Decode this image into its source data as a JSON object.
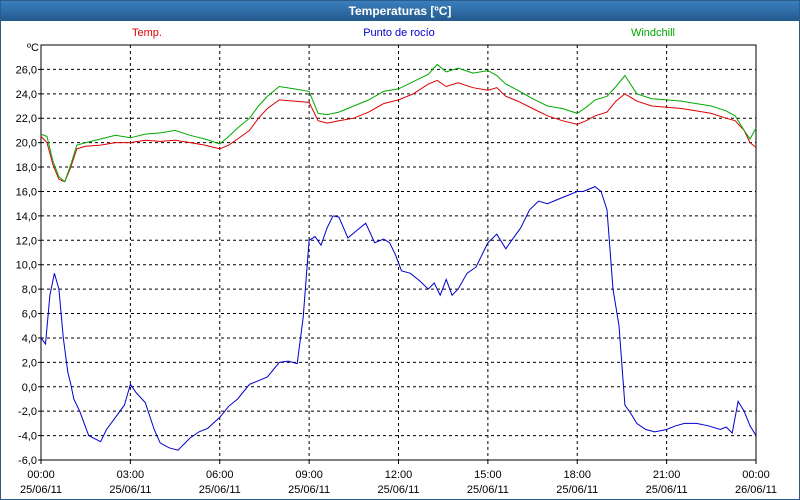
{
  "window": {
    "title": "Temperaturas [ºC]"
  },
  "chart_data": {
    "type": "line",
    "title": "Temperaturas [ºC]",
    "ylabel": "ºC",
    "ylim": [
      -6,
      28
    ],
    "yticks": [
      -6,
      -4,
      -2,
      0,
      2,
      4,
      6,
      8,
      10,
      12,
      14,
      16,
      18,
      20,
      22,
      24,
      26
    ],
    "ytick_labels": [
      "-6,0",
      "-4,0",
      "-2,0",
      "0,0",
      "2,0",
      "4,0",
      "6,0",
      "8,0",
      "10,0",
      "12,0",
      "14,0",
      "16,0",
      "18,0",
      "20,0",
      "22,0",
      "24,0",
      "26,0"
    ],
    "xlim": [
      0,
      24
    ],
    "xticks": [
      0,
      3,
      6,
      9,
      12,
      15,
      18,
      21,
      24
    ],
    "xtick_labels": [
      [
        "00:00",
        "25/06/11"
      ],
      [
        "03:00",
        "25/06/11"
      ],
      [
        "06:00",
        "25/06/11"
      ],
      [
        "09:00",
        "25/06/11"
      ],
      [
        "12:00",
        "25/06/11"
      ],
      [
        "15:00",
        "25/06/11"
      ],
      [
        "18:00",
        "25/06/11"
      ],
      [
        "21:00",
        "25/06/11"
      ],
      [
        "00:00",
        "26/06/11"
      ]
    ],
    "grid": true,
    "legend_position": "top",
    "series": [
      {
        "name": "Temp.",
        "color": "#dd0000",
        "x": [
          0,
          0.2,
          0.4,
          0.6,
          0.8,
          1.0,
          1.2,
          1.5,
          2.0,
          2.5,
          3.0,
          3.5,
          4.0,
          4.5,
          5.0,
          5.5,
          6.0,
          6.3,
          6.6,
          7.0,
          7.3,
          7.6,
          8.0,
          8.5,
          9.0,
          9.3,
          9.6,
          10.0,
          10.5,
          11.0,
          11.5,
          12.0,
          12.5,
          13.0,
          13.3,
          13.6,
          14.0,
          14.5,
          15.0,
          15.3,
          15.6,
          16.0,
          16.5,
          17.0,
          17.5,
          18.0,
          18.3,
          18.6,
          19.0,
          19.3,
          19.6,
          20.0,
          20.5,
          21.0,
          21.5,
          22.0,
          22.5,
          23.0,
          23.3,
          23.6,
          23.8,
          24.0
        ],
        "y": [
          20.5,
          20.0,
          18.2,
          17.0,
          16.8,
          18.0,
          19.5,
          19.7,
          19.8,
          20.0,
          20.0,
          20.2,
          20.1,
          20.2,
          20.0,
          19.8,
          19.5,
          19.8,
          20.3,
          21.0,
          22.0,
          22.8,
          23.5,
          23.4,
          23.3,
          21.8,
          21.6,
          21.8,
          22.0,
          22.5,
          23.2,
          23.5,
          24.0,
          24.8,
          25.1,
          24.6,
          24.9,
          24.5,
          24.3,
          24.5,
          23.8,
          23.4,
          22.8,
          22.2,
          21.8,
          21.5,
          21.8,
          22.2,
          22.5,
          23.4,
          24.0,
          23.4,
          23.0,
          22.9,
          22.8,
          22.6,
          22.4,
          22.0,
          21.8,
          21.0,
          20.0,
          19.6
        ]
      },
      {
        "name": "Punto de rocío",
        "color": "#0000cc",
        "x": [
          0,
          0.15,
          0.3,
          0.45,
          0.6,
          0.75,
          0.9,
          1.0,
          1.1,
          1.3,
          1.6,
          2.0,
          2.2,
          2.5,
          2.8,
          3.0,
          3.2,
          3.5,
          3.8,
          4.0,
          4.3,
          4.6,
          5.0,
          5.3,
          5.6,
          6.0,
          6.3,
          6.6,
          7.0,
          7.3,
          7.6,
          8.0,
          8.3,
          8.6,
          8.8,
          9.0,
          9.2,
          9.4,
          9.6,
          9.8,
          10.0,
          10.3,
          10.6,
          10.9,
          11.2,
          11.5,
          11.7,
          11.9,
          12.1,
          12.4,
          12.7,
          13.0,
          13.2,
          13.4,
          13.6,
          13.8,
          14.0,
          14.3,
          14.6,
          15.0,
          15.3,
          15.6,
          15.8,
          16.1,
          16.4,
          16.7,
          17.0,
          17.3,
          17.6,
          18.0,
          18.2,
          18.4,
          18.6,
          18.8,
          19.0,
          19.2,
          19.4,
          19.6,
          19.8,
          20.0,
          20.3,
          20.6,
          21.0,
          21.3,
          21.6,
          22.0,
          22.4,
          22.8,
          23.0,
          23.2,
          23.4,
          23.6,
          23.8,
          24.0
        ],
        "y": [
          4.0,
          3.5,
          7.5,
          9.3,
          8.0,
          4.0,
          1.2,
          0.2,
          -1.0,
          -2.0,
          -4.0,
          -4.5,
          -3.5,
          -2.5,
          -1.5,
          0.2,
          -0.5,
          -1.3,
          -3.5,
          -4.6,
          -5.0,
          -5.2,
          -4.2,
          -3.7,
          -3.4,
          -2.5,
          -1.6,
          -1.0,
          0.2,
          0.5,
          0.8,
          2.0,
          2.1,
          1.9,
          5.7,
          12.0,
          12.3,
          11.6,
          13.0,
          14.0,
          13.9,
          12.2,
          12.8,
          13.4,
          11.8,
          12.1,
          11.8,
          10.8,
          9.5,
          9.3,
          8.7,
          8.0,
          8.5,
          7.5,
          8.8,
          7.5,
          8.0,
          9.3,
          9.8,
          11.8,
          12.5,
          11.3,
          12.0,
          13.0,
          14.5,
          15.2,
          15.0,
          15.3,
          15.6,
          16.0,
          16.0,
          16.2,
          16.4,
          16.0,
          14.5,
          8.0,
          5.0,
          -1.5,
          -2.2,
          -3.0,
          -3.5,
          -3.7,
          -3.5,
          -3.2,
          -3.0,
          -3.0,
          -3.2,
          -3.5,
          -3.3,
          -3.8,
          -1.2,
          -2.0,
          -3.2,
          -4.0
        ]
      },
      {
        "name": "Windchill",
        "color": "#00aa00",
        "x": [
          0,
          0.2,
          0.4,
          0.6,
          0.8,
          1.0,
          1.2,
          1.5,
          2.0,
          2.5,
          3.0,
          3.5,
          4.0,
          4.5,
          5.0,
          5.5,
          6.0,
          6.3,
          6.6,
          7.0,
          7.3,
          7.6,
          8.0,
          8.5,
          9.0,
          9.3,
          9.6,
          10.0,
          10.5,
          11.0,
          11.5,
          12.0,
          12.5,
          13.0,
          13.3,
          13.6,
          14.0,
          14.5,
          15.0,
          15.3,
          15.6,
          16.0,
          16.5,
          17.0,
          17.5,
          18.0,
          18.3,
          18.6,
          19.0,
          19.3,
          19.6,
          20.0,
          20.5,
          21.0,
          21.5,
          22.0,
          22.5,
          23.0,
          23.3,
          23.6,
          23.8,
          24.0
        ],
        "y": [
          20.7,
          20.5,
          18.5,
          17.2,
          16.8,
          18.2,
          19.8,
          20.0,
          20.3,
          20.6,
          20.4,
          20.7,
          20.8,
          21.0,
          20.6,
          20.3,
          19.9,
          20.5,
          21.2,
          22.0,
          23.0,
          23.8,
          24.6,
          24.4,
          24.2,
          22.4,
          22.3,
          22.5,
          23.0,
          23.5,
          24.2,
          24.4,
          25.0,
          25.6,
          26.4,
          25.8,
          26.1,
          25.7,
          25.9,
          25.5,
          24.8,
          24.3,
          23.6,
          23.0,
          22.8,
          22.4,
          22.9,
          23.5,
          23.8,
          24.6,
          25.5,
          24.0,
          23.6,
          23.5,
          23.4,
          23.2,
          23.0,
          22.6,
          22.2,
          21.0,
          20.3,
          21.2
        ]
      }
    ]
  }
}
